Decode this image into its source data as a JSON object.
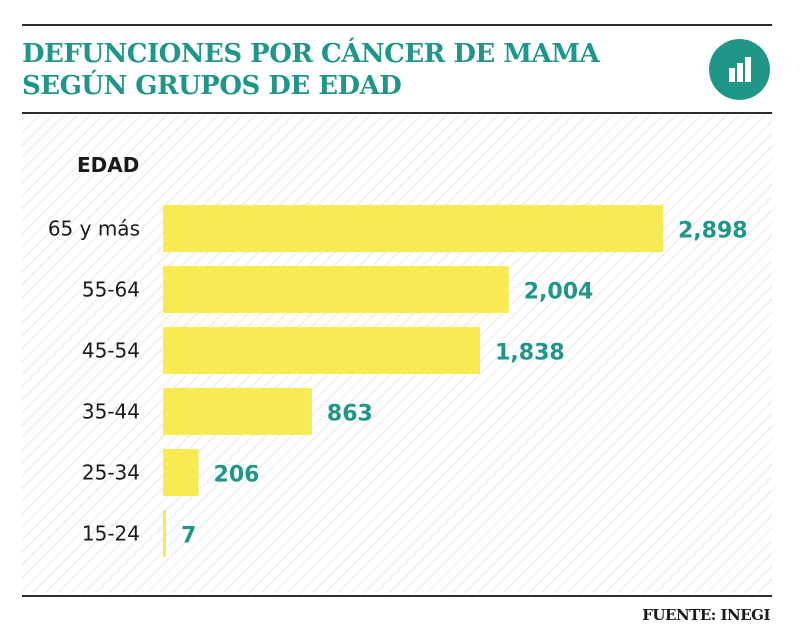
{
  "header": {
    "title_line1": "DEFUNCIONES POR CÁNCER DE MAMA",
    "title_line2": "SEGÚN GRUPOS DE EDAD",
    "icon": "bar-chart-icon"
  },
  "chart_data": {
    "type": "bar",
    "orientation": "horizontal",
    "title": "DEFUNCIONES POR CÁNCER DE MAMA SEGÚN GRUPOS DE EDAD",
    "axis_title": "EDAD",
    "categories": [
      "65 y más",
      "55-64",
      "45-54",
      "35-44",
      "25-34",
      "15-24"
    ],
    "values": [
      2898,
      2004,
      1838,
      863,
      206,
      7
    ],
    "value_labels": [
      "2,898",
      "2,004",
      "1,838",
      "863",
      "206",
      "7"
    ],
    "xlim": [
      0,
      2898
    ],
    "grid": false,
    "legend": "none",
    "colors": {
      "bar": "#f7ea52",
      "value_text": "#1f9688",
      "accent": "#1f9688"
    }
  },
  "footer": {
    "source": "FUENTE: INEGI"
  }
}
